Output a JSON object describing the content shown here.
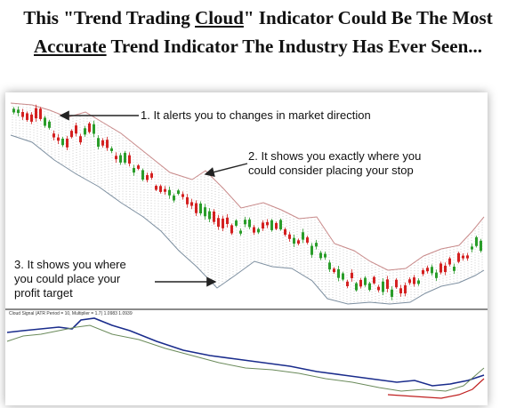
{
  "headline": {
    "line1_pre": "This \"Trend Trading ",
    "line1_ul": "Cloud",
    "line1_post": "\" Indicator Could Be The Most",
    "line2_ul": "Accurate",
    "line2_post": " Trend Indicator The Industry Has Ever Seen..."
  },
  "annotations": {
    "a1": "1. It alerts you to changes in market direction",
    "a2_line1": "2. It shows you exactly where you",
    "a2_line2": "could consider placing your stop",
    "a3_line1": "3. It shows you where",
    "a3_line2": "you could place your",
    "a3_line3": "profit target"
  },
  "indicator": {
    "label": "Cloud Signal (ATR Period = 10, Multiplier = 1.7) 1.0983 1.0939"
  },
  "colors": {
    "bull": "#2a9d2a",
    "bear": "#d42020",
    "upper_band": "#c98a8a",
    "lower_band": "#7d8fa0",
    "signal": "#1a2c8c",
    "second": "#6a8a5a",
    "third": "#c02020",
    "hatch": "#9a9a9a"
  }
}
